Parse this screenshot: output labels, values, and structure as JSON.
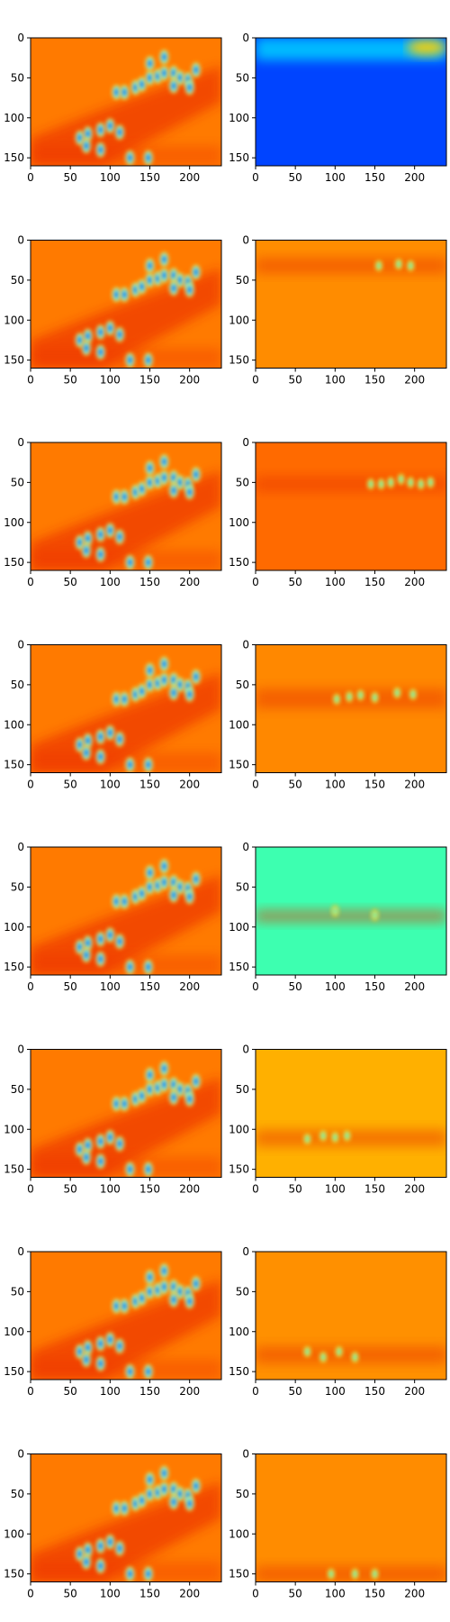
{
  "figure": {
    "rows": 8,
    "cols": 2
  },
  "chart_data": [
    {
      "type": "heatmap",
      "panel": "row1-left",
      "colormap": "jet",
      "xlim": [
        0,
        240
      ],
      "ylim": [
        160,
        0
      ],
      "xticks": [
        "0",
        "50",
        "100",
        "150",
        "200"
      ],
      "yticks": [
        "0",
        "50",
        "100",
        "150"
      ],
      "background_color": "#ff7a00",
      "blobs": [
        [
          108,
          68
        ],
        [
          118,
          68
        ],
        [
          132,
          62
        ],
        [
          140,
          58
        ],
        [
          150,
          50
        ],
        [
          160,
          48
        ],
        [
          168,
          44
        ],
        [
          180,
          44
        ],
        [
          188,
          50
        ],
        [
          198,
          52
        ],
        [
          208,
          40
        ],
        [
          150,
          32
        ],
        [
          168,
          24
        ],
        [
          62,
          125
        ],
        [
          72,
          120
        ],
        [
          88,
          115
        ],
        [
          100,
          110
        ],
        [
          112,
          118
        ],
        [
          70,
          135
        ],
        [
          88,
          140
        ],
        [
          125,
          150
        ],
        [
          148,
          150
        ],
        [
          180,
          60
        ],
        [
          200,
          62
        ]
      ]
    },
    {
      "type": "heatmap",
      "panel": "row1-right",
      "colormap": "jet",
      "xlim": [
        0,
        240
      ],
      "ylim": [
        160,
        0
      ],
      "xticks": [
        "0",
        "50",
        "100",
        "150",
        "200"
      ],
      "yticks": [
        "0",
        "50",
        "100",
        "150"
      ],
      "background_color": "#0044ff",
      "band": [
        0,
        28
      ]
    },
    {
      "type": "heatmap",
      "panel": "row2-left",
      "colormap": "jet",
      "xlim": [
        0,
        240
      ],
      "ylim": [
        160,
        0
      ],
      "xticks": [
        "0",
        "50",
        "100",
        "150",
        "200"
      ],
      "yticks": [
        "0",
        "50",
        "100",
        "150"
      ],
      "background_color": "#ff7a00"
    },
    {
      "type": "heatmap",
      "panel": "row2-right",
      "colormap": "jet",
      "xlim": [
        0,
        240
      ],
      "ylim": [
        160,
        0
      ],
      "xticks": [
        "0",
        "50",
        "100",
        "150",
        "200"
      ],
      "yticks": [
        "0",
        "50",
        "100",
        "150"
      ],
      "background_color": "#ff8c00",
      "band": [
        22,
        42
      ],
      "blobs": [
        [
          155,
          32
        ],
        [
          180,
          30
        ],
        [
          195,
          32
        ]
      ]
    },
    {
      "type": "heatmap",
      "panel": "row3-left",
      "colormap": "jet",
      "xlim": [
        0,
        240
      ],
      "ylim": [
        160,
        0
      ],
      "xticks": [
        "0",
        "50",
        "100",
        "150",
        "200"
      ],
      "yticks": [
        "0",
        "50",
        "100",
        "150"
      ],
      "background_color": "#ff7a00"
    },
    {
      "type": "heatmap",
      "panel": "row3-right",
      "colormap": "jet",
      "xlim": [
        0,
        240
      ],
      "ylim": [
        160,
        0
      ],
      "xticks": [
        "0",
        "50",
        "100",
        "150",
        "200"
      ],
      "yticks": [
        "0",
        "50",
        "100",
        "150"
      ],
      "background_color": "#ff6a00",
      "band": [
        42,
        62
      ],
      "blobs": [
        [
          145,
          52
        ],
        [
          158,
          52
        ],
        [
          170,
          50
        ],
        [
          183,
          46
        ],
        [
          195,
          50
        ],
        [
          208,
          52
        ],
        [
          220,
          50
        ]
      ]
    },
    {
      "type": "heatmap",
      "panel": "row4-left",
      "colormap": "jet",
      "xlim": [
        0,
        240
      ],
      "ylim": [
        160,
        0
      ],
      "xticks": [
        "0",
        "50",
        "100",
        "150",
        "200"
      ],
      "yticks": [
        "0",
        "50",
        "100",
        "150"
      ],
      "background_color": "#ff7a00"
    },
    {
      "type": "heatmap",
      "panel": "row4-right",
      "colormap": "jet",
      "xlim": [
        0,
        240
      ],
      "ylim": [
        160,
        0
      ],
      "xticks": [
        "0",
        "50",
        "100",
        "150",
        "200"
      ],
      "yticks": [
        "0",
        "50",
        "100",
        "150"
      ],
      "background_color": "#ff8800",
      "band": [
        55,
        80
      ],
      "blobs": [
        [
          102,
          68
        ],
        [
          118,
          65
        ],
        [
          132,
          63
        ],
        [
          150,
          66
        ],
        [
          178,
          60
        ],
        [
          198,
          62
        ]
      ]
    },
    {
      "type": "heatmap",
      "panel": "row5-left",
      "colormap": "jet",
      "xlim": [
        0,
        240
      ],
      "ylim": [
        160,
        0
      ],
      "xticks": [
        "0",
        "50",
        "100",
        "150",
        "200"
      ],
      "yticks": [
        "0",
        "50",
        "100",
        "150"
      ],
      "background_color": "#ff7a00"
    },
    {
      "type": "heatmap",
      "panel": "row5-right",
      "colormap": "jet",
      "xlim": [
        0,
        240
      ],
      "ylim": [
        160,
        0
      ],
      "xticks": [
        "0",
        "50",
        "100",
        "150",
        "200"
      ],
      "yticks": [
        "0",
        "50",
        "100",
        "150"
      ],
      "background_color": "#3dffb0",
      "band": [
        78,
        95
      ],
      "blobs": [
        [
          100,
          80
        ],
        [
          150,
          85
        ]
      ]
    },
    {
      "type": "heatmap",
      "panel": "row6-left",
      "colormap": "jet",
      "xlim": [
        0,
        240
      ],
      "ylim": [
        160,
        0
      ],
      "xticks": [
        "0",
        "50",
        "100",
        "150",
        "200"
      ],
      "yticks": [
        "0",
        "50",
        "100",
        "150"
      ],
      "background_color": "#ff7a00"
    },
    {
      "type": "heatmap",
      "panel": "row6-right",
      "colormap": "jet",
      "xlim": [
        0,
        240
      ],
      "ylim": [
        160,
        0
      ],
      "xticks": [
        "0",
        "50",
        "100",
        "150",
        "200"
      ],
      "yticks": [
        "0",
        "50",
        "100",
        "150"
      ],
      "background_color": "#ffb000",
      "band": [
        100,
        122
      ],
      "blobs": [
        [
          65,
          112
        ],
        [
          85,
          108
        ],
        [
          100,
          110
        ],
        [
          115,
          108
        ]
      ]
    },
    {
      "type": "heatmap",
      "panel": "row7-left",
      "colormap": "jet",
      "xlim": [
        0,
        240
      ],
      "ylim": [
        160,
        0
      ],
      "xticks": [
        "0",
        "50",
        "100",
        "150",
        "200"
      ],
      "yticks": [
        "0",
        "50",
        "100",
        "150"
      ],
      "background_color": "#ff7a00"
    },
    {
      "type": "heatmap",
      "panel": "row7-right",
      "colormap": "jet",
      "xlim": [
        0,
        240
      ],
      "ylim": [
        160,
        0
      ],
      "xticks": [
        "0",
        "50",
        "100",
        "150",
        "200"
      ],
      "yticks": [
        "0",
        "50",
        "100",
        "150"
      ],
      "background_color": "#ff9000",
      "band": [
        118,
        140
      ],
      "blobs": [
        [
          65,
          125
        ],
        [
          85,
          132
        ],
        [
          105,
          125
        ],
        [
          125,
          132
        ]
      ]
    },
    {
      "type": "heatmap",
      "panel": "row8-left",
      "colormap": "jet",
      "xlim": [
        0,
        240
      ],
      "ylim": [
        160,
        0
      ],
      "xticks": [
        "0",
        "50",
        "100",
        "150",
        "200"
      ],
      "yticks": [
        "0",
        "50",
        "100",
        "150"
      ],
      "background_color": "#ff7a00"
    },
    {
      "type": "heatmap",
      "panel": "row8-right",
      "colormap": "jet",
      "xlim": [
        0,
        240
      ],
      "ylim": [
        160,
        0
      ],
      "xticks": [
        "0",
        "50",
        "100",
        "150",
        "200"
      ],
      "yticks": [
        "0",
        "50",
        "100",
        "150"
      ],
      "background_color": "#ff8c00",
      "band": [
        140,
        160
      ],
      "blobs": [
        [
          95,
          150
        ],
        [
          125,
          150
        ],
        [
          150,
          150
        ]
      ]
    }
  ]
}
